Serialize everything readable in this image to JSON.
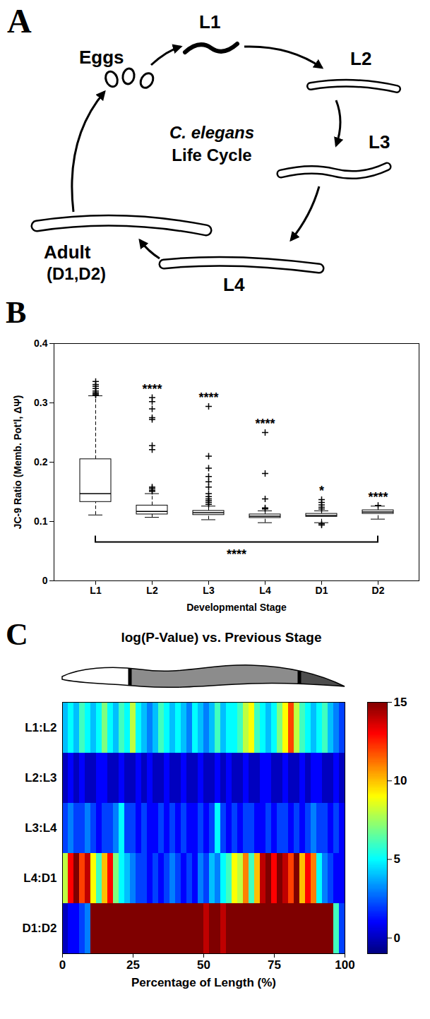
{
  "diagram": {
    "panel": "A",
    "center_text": [
      "C. elegans",
      "Life Cycle"
    ],
    "nodes": [
      {
        "label": "Eggs"
      },
      {
        "label": "L1"
      },
      {
        "label": "L2"
      },
      {
        "label": "L3"
      },
      {
        "label": "L4"
      },
      {
        "label": "Adult",
        "sublabel": "(D1,D2)"
      }
    ]
  },
  "chart_data": [
    {
      "panel": "B",
      "type": "box",
      "x_label": "Developmental Stage",
      "y_label": "JC-9 Ratio (Memb. Pot'l, ΔΨ)",
      "categories": [
        "L1",
        "L2",
        "L3",
        "L4",
        "D1",
        "D2"
      ],
      "whisker_low": [
        0.111,
        0.107,
        0.103,
        0.098,
        0.098,
        0.104
      ],
      "q1": [
        0.133,
        0.112,
        0.111,
        0.106,
        0.108,
        0.113
      ],
      "median": [
        0.147,
        0.117,
        0.115,
        0.109,
        0.11,
        0.116
      ],
      "q3": [
        0.205,
        0.127,
        0.118,
        0.112,
        0.113,
        0.119
      ],
      "whisker_high": [
        0.312,
        0.147,
        0.126,
        0.118,
        0.118,
        0.126
      ],
      "outliers": [
        [
          0.313,
          0.315,
          0.317,
          0.32,
          0.324,
          0.328,
          0.331,
          0.336
        ],
        [
          0.151,
          0.153,
          0.156,
          0.158,
          0.221,
          0.228,
          0.272,
          0.275,
          0.29,
          0.302,
          0.309
        ],
        [
          0.129,
          0.132,
          0.135,
          0.138,
          0.142,
          0.147,
          0.158,
          0.167,
          0.176,
          0.19,
          0.21,
          0.294
        ],
        [
          0.121,
          0.123,
          0.138,
          0.181,
          0.25
        ],
        [
          0.094,
          0.096,
          0.121,
          0.124,
          0.128,
          0.132,
          0.137
        ],
        [
          0.127
        ]
      ],
      "sig_labels": [
        null,
        "****",
        "****",
        "****",
        "*",
        "****"
      ],
      "comparison": {
        "from": "L1",
        "to": "D2",
        "value": 0.065,
        "label": "****"
      },
      "ylim": [
        0,
        0.4
      ],
      "yticks": [
        0,
        0.1,
        0.2,
        0.3,
        0.4
      ],
      "color": "#000000",
      "marker": "plus",
      "line_style": "dashed"
    },
    {
      "panel": "C",
      "type": "heatmap",
      "title": "log(P-Value) vs. Previous Stage",
      "x_label": "Percentage of Length (%)",
      "rows": [
        "L1:L2",
        "L2:L3",
        "L3:L4",
        "L4:D1",
        "D1:D2"
      ],
      "x": [
        0,
        2,
        4,
        6,
        8,
        10,
        12,
        14,
        16,
        18,
        20,
        22,
        24,
        26,
        28,
        30,
        32,
        34,
        36,
        38,
        40,
        42,
        44,
        46,
        48,
        50,
        52,
        54,
        56,
        58,
        60,
        62,
        64,
        66,
        68,
        70,
        72,
        74,
        76,
        78,
        80,
        82,
        84,
        86,
        88,
        90,
        92,
        94,
        96,
        98
      ],
      "xlim": [
        0,
        100
      ],
      "xticks": [
        0,
        25,
        50,
        75,
        100
      ],
      "cells": [
        [
          4,
          5,
          4,
          6,
          5,
          4,
          5,
          7,
          5,
          4,
          6,
          5,
          8,
          5,
          4,
          3,
          4,
          6,
          5,
          4,
          5,
          4,
          3,
          5,
          4,
          3,
          4,
          6,
          4,
          5,
          5,
          6,
          8,
          9,
          6,
          5,
          4,
          5,
          7,
          9,
          12,
          8,
          6,
          5,
          4,
          5,
          6,
          4,
          3,
          2
        ],
        [
          0,
          1,
          0,
          1,
          0,
          0,
          1,
          1,
          0,
          0,
          1,
          0,
          0,
          1,
          0,
          1,
          0,
          0,
          1,
          0,
          0,
          1,
          0,
          0,
          1,
          0,
          0,
          1,
          0,
          1,
          0,
          0,
          1,
          0,
          0,
          1,
          1,
          0,
          0,
          1,
          0,
          0,
          1,
          0,
          1,
          1,
          0,
          0,
          1,
          0
        ],
        [
          2,
          3,
          2,
          2,
          3,
          2,
          1,
          2,
          2,
          3,
          5,
          2,
          2,
          1,
          2,
          1,
          1,
          2,
          1,
          2,
          1,
          2,
          1,
          1,
          2,
          1,
          2,
          5,
          2,
          1,
          2,
          1,
          2,
          2,
          1,
          1,
          2,
          1,
          2,
          2,
          1,
          2,
          1,
          2,
          3,
          2,
          2,
          1,
          2,
          1
        ],
        [
          8,
          13,
          15,
          12,
          14,
          9,
          6,
          10,
          13,
          7,
          5,
          4,
          3,
          2,
          2,
          1,
          2,
          1,
          2,
          3,
          2,
          1,
          2,
          1,
          3,
          2,
          4,
          3,
          5,
          6,
          9,
          8,
          11,
          6,
          10,
          14,
          15,
          13,
          15,
          14,
          12,
          15,
          10,
          13,
          11,
          5,
          3,
          2,
          1,
          1
        ],
        [
          0,
          1,
          1,
          2,
          3,
          15,
          15,
          15,
          15,
          15,
          15,
          15,
          15,
          15,
          15,
          15,
          15,
          15,
          15,
          15,
          15,
          15,
          15,
          15,
          15,
          14,
          15,
          15,
          14,
          15,
          15,
          15,
          15,
          15,
          15,
          15,
          15,
          15,
          15,
          15,
          15,
          15,
          15,
          15,
          15,
          15,
          15,
          15,
          6,
          2
        ]
      ],
      "colorbar_range": [
        -1,
        15
      ],
      "colorbar_ticks": [
        0,
        5,
        10,
        15
      ]
    }
  ]
}
